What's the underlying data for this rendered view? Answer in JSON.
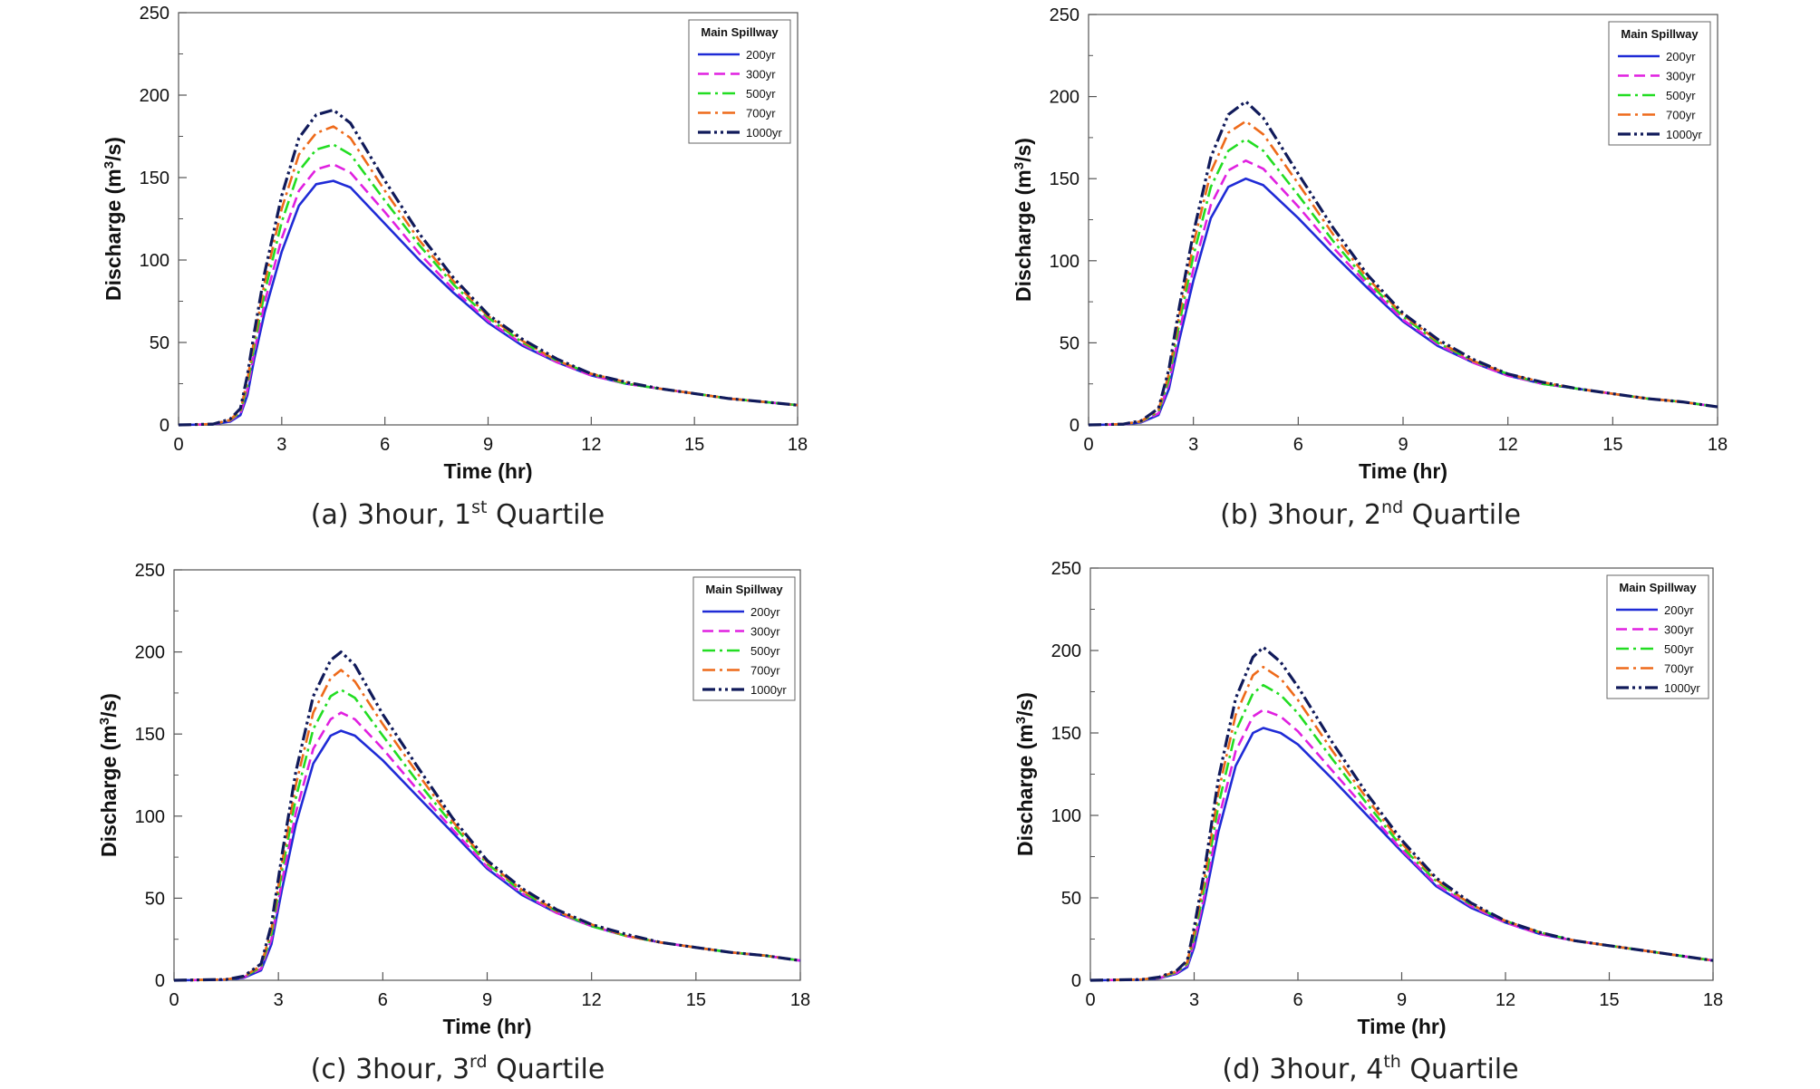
{
  "figure": {
    "legend_title": "Main Spillway",
    "xlabel": "Time (hr)",
    "ylabel_main": "Discharge (m",
    "ylabel_sup": "3",
    "ylabel_end": "/s)"
  },
  "series_styles": [
    {
      "name": "200yr",
      "color": "#1f2bd6",
      "dash": "solid"
    },
    {
      "name": "300yr",
      "color": "#e020e0",
      "dash": "dashed"
    },
    {
      "name": "500yr",
      "color": "#22dd22",
      "dash": "dashdot"
    },
    {
      "name": "700yr",
      "color": "#ee6a1a",
      "dash": "dashdot"
    },
    {
      "name": "1000yr",
      "color": "#101a5a",
      "dash": "dashdotdot"
    }
  ],
  "chart_data": [
    {
      "type": "line",
      "caption_prefix": "(a) 3hour, 1",
      "caption_sup": "st",
      "caption_suffix": " Quartile",
      "xlabel": "Time (hr)",
      "ylabel": "Discharge (m3/s)",
      "xlim": [
        0,
        18
      ],
      "ylim": [
        0,
        250
      ],
      "xticks": [
        0,
        3,
        6,
        9,
        12,
        15,
        18
      ],
      "yticks": [
        0,
        50,
        100,
        150,
        200,
        250
      ],
      "legend_position": "top-right",
      "grid": false,
      "x": [
        0,
        1,
        1.5,
        1.8,
        2.0,
        2.2,
        2.5,
        3.0,
        3.5,
        4.0,
        4.5,
        5.0,
        6.0,
        7.0,
        8.0,
        9.0,
        10.0,
        11.0,
        12.0,
        13.0,
        14.0,
        15.0,
        16.0,
        17.0,
        18.0
      ],
      "series": [
        {
          "name": "200yr",
          "values": [
            0,
            0.3,
            2,
            6,
            18,
            40,
            68,
            105,
            133,
            146,
            148,
            144,
            122,
            100,
            80,
            62,
            48,
            38,
            30,
            25,
            22,
            19,
            16,
            14,
            12
          ]
        },
        {
          "name": "300yr",
          "values": [
            0,
            0.4,
            2.5,
            7,
            21,
            44,
            74,
            113,
            142,
            155,
            158,
            153,
            129,
            104,
            82,
            63,
            49,
            38,
            30,
            25,
            22,
            19,
            16,
            14,
            12
          ]
        },
        {
          "name": "500yr",
          "values": [
            0,
            0.4,
            2.8,
            8,
            24,
            48,
            80,
            123,
            154,
            167,
            170,
            164,
            136,
            109,
            85,
            65,
            50,
            39,
            31,
            25,
            22,
            19,
            16,
            14,
            12
          ]
        },
        {
          "name": "700yr",
          "values": [
            0,
            0.5,
            3,
            9,
            27,
            52,
            86,
            131,
            164,
            177,
            181,
            174,
            142,
            112,
            87,
            66,
            51,
            39,
            31,
            26,
            22,
            19,
            16,
            14,
            12
          ]
        },
        {
          "name": "1000yr",
          "values": [
            0,
            0.5,
            3.5,
            10,
            30,
            56,
            92,
            139,
            174,
            188,
            191,
            183,
            148,
            116,
            89,
            67,
            52,
            40,
            31,
            26,
            22,
            19,
            16,
            14,
            12
          ]
        }
      ]
    },
    {
      "type": "line",
      "caption_prefix": "(b) 3hour, 2",
      "caption_sup": "nd",
      "caption_suffix": " Quartile",
      "xlabel": "Time (hr)",
      "ylabel": "Discharge (m3/s)",
      "xlim": [
        0,
        18
      ],
      "ylim": [
        0,
        250
      ],
      "xticks": [
        0,
        3,
        6,
        9,
        12,
        15,
        18
      ],
      "yticks": [
        0,
        50,
        100,
        150,
        200,
        250
      ],
      "legend_position": "top-right",
      "grid": false,
      "x": [
        0,
        1,
        1.5,
        2.0,
        2.3,
        2.6,
        3.0,
        3.5,
        4.0,
        4.5,
        5.0,
        6.0,
        7.0,
        8.0,
        9.0,
        10.0,
        11.0,
        12.0,
        13.0,
        14.0,
        15.0,
        16.0,
        17.0,
        18.0
      ],
      "series": [
        {
          "name": "200yr",
          "values": [
            0,
            0.3,
            1.5,
            6,
            22,
            52,
            88,
            126,
            145,
            150,
            146,
            126,
            104,
            83,
            63,
            48,
            38,
            30,
            25,
            22,
            19,
            16,
            14,
            11
          ]
        },
        {
          "name": "300yr",
          "values": [
            0,
            0.4,
            1.8,
            7,
            25,
            57,
            95,
            134,
            155,
            161,
            156,
            133,
            108,
            85,
            64,
            49,
            38,
            30,
            25,
            22,
            19,
            16,
            14,
            11
          ]
        },
        {
          "name": "500yr",
          "values": [
            0,
            0.4,
            2,
            8,
            28,
            62,
            103,
            145,
            167,
            174,
            167,
            140,
            112,
            87,
            66,
            50,
            39,
            31,
            25,
            22,
            19,
            16,
            14,
            11
          ]
        },
        {
          "name": "700yr",
          "values": [
            0,
            0.5,
            2.2,
            9,
            31,
            67,
            110,
            154,
            178,
            185,
            177,
            147,
            116,
            89,
            67,
            51,
            39,
            31,
            26,
            22,
            19,
            16,
            14,
            11
          ]
        },
        {
          "name": "1000yr",
          "values": [
            0,
            0.5,
            2.5,
            10,
            34,
            72,
            117,
            163,
            189,
            197,
            187,
            153,
            120,
            91,
            68,
            52,
            40,
            31,
            26,
            22,
            19,
            16,
            14,
            11
          ]
        }
      ]
    },
    {
      "type": "line",
      "caption_prefix": "(c) 3hour, 3",
      "caption_sup": "rd",
      "caption_suffix": " Quartile",
      "xlabel": "Time (hr)",
      "ylabel": "Discharge (m3/s)",
      "xlim": [
        0,
        18
      ],
      "ylim": [
        0,
        250
      ],
      "xticks": [
        0,
        3,
        6,
        9,
        12,
        15,
        18
      ],
      "yticks": [
        0,
        50,
        100,
        150,
        200,
        250
      ],
      "legend_position": "top-right",
      "grid": false,
      "x": [
        0,
        1.5,
        2.0,
        2.5,
        2.8,
        3.1,
        3.5,
        4.0,
        4.5,
        4.8,
        5.2,
        6.0,
        7.0,
        8.0,
        9.0,
        10.0,
        11.0,
        12.0,
        13.0,
        14.0,
        15.0,
        16.0,
        17.0,
        18.0
      ],
      "series": [
        {
          "name": "200yr",
          "values": [
            0,
            0.3,
            1.5,
            6,
            22,
            55,
            95,
            132,
            149,
            152,
            149,
            134,
            112,
            90,
            68,
            52,
            41,
            33,
            27,
            23,
            20,
            17,
            15,
            12
          ]
        },
        {
          "name": "300yr",
          "values": [
            0,
            0.4,
            1.8,
            7,
            25,
            60,
            102,
            141,
            159,
            163,
            159,
            141,
            116,
            92,
            69,
            53,
            41,
            33,
            27,
            23,
            20,
            17,
            15,
            12
          ]
        },
        {
          "name": "500yr",
          "values": [
            0,
            0.4,
            2,
            8,
            28,
            66,
            111,
            153,
            173,
            177,
            172,
            149,
            121,
            95,
            71,
            54,
            42,
            33,
            27,
            23,
            20,
            17,
            15,
            12
          ]
        },
        {
          "name": "700yr",
          "values": [
            0,
            0.5,
            2.2,
            9,
            31,
            71,
            119,
            163,
            184,
            189,
            182,
            156,
            126,
            97,
            72,
            55,
            42,
            34,
            27,
            23,
            20,
            17,
            15,
            12
          ]
        },
        {
          "name": "1000yr",
          "values": [
            0,
            0.5,
            2.5,
            10,
            34,
            76,
            127,
            173,
            195,
            200,
            192,
            162,
            130,
            99,
            73,
            56,
            43,
            34,
            28,
            23,
            20,
            17,
            15,
            12
          ]
        }
      ]
    },
    {
      "type": "line",
      "caption_prefix": "(d) 3hour, 4",
      "caption_sup": "th",
      "caption_suffix": " Quartile",
      "xlabel": "Time (hr)",
      "ylabel": "Discharge (m3/s)",
      "xlim": [
        0,
        18
      ],
      "ylim": [
        0,
        250
      ],
      "xticks": [
        0,
        3,
        6,
        9,
        12,
        15,
        18
      ],
      "yticks": [
        0,
        50,
        100,
        150,
        200,
        250
      ],
      "legend_position": "top-right",
      "grid": false,
      "x": [
        0,
        1.5,
        2.0,
        2.5,
        2.8,
        3.0,
        3.3,
        3.7,
        4.2,
        4.7,
        5.0,
        5.5,
        6.0,
        7.0,
        8.0,
        9.0,
        10.0,
        11.0,
        12.0,
        13.0,
        14.0,
        15.0,
        16.0,
        17.0,
        18.0
      ],
      "series": [
        {
          "name": "200yr",
          "values": [
            0,
            0.3,
            1.2,
            4,
            8,
            20,
            48,
            90,
            130,
            150,
            153,
            150,
            143,
            122,
            100,
            78,
            57,
            44,
            35,
            28,
            24,
            21,
            18,
            15,
            12
          ]
        },
        {
          "name": "300yr",
          "values": [
            0,
            0.4,
            1.4,
            4.5,
            9,
            23,
            52,
            97,
            139,
            160,
            164,
            160,
            151,
            127,
            103,
            79,
            58,
            45,
            35,
            28,
            24,
            21,
            18,
            15,
            12
          ]
        },
        {
          "name": "500yr",
          "values": [
            0,
            0.4,
            1.6,
            5,
            10,
            26,
            57,
            106,
            151,
            174,
            179,
            173,
            162,
            134,
            107,
            81,
            60,
            46,
            36,
            29,
            24,
            21,
            18,
            15,
            12
          ]
        },
        {
          "name": "700yr",
          "values": [
            0,
            0.5,
            1.8,
            5.5,
            11,
            29,
            62,
            114,
            161,
            185,
            190,
            183,
            170,
            139,
            110,
            83,
            61,
            46,
            36,
            29,
            24,
            21,
            18,
            15,
            12
          ]
        },
        {
          "name": "1000yr",
          "values": [
            0,
            0.5,
            2,
            6,
            12,
            32,
            67,
            122,
            171,
            196,
            202,
            193,
            178,
            144,
            113,
            85,
            62,
            47,
            36,
            29,
            24,
            21,
            18,
            15,
            12
          ]
        }
      ]
    }
  ]
}
